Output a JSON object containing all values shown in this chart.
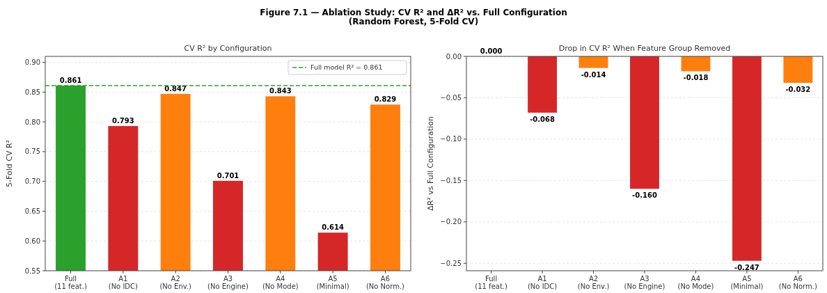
{
  "chart_data": [
    {
      "type": "bar",
      "title": "Figure 7.1 — Ablation Study: CV R² and ΔR² vs. Full Configuration\n(Random Forest, 5-Fold CV)",
      "subtitle": "CV R² by Configuration",
      "ylabel": "5-Fold CV R²",
      "categories": [
        "Full\n(11 feat.)",
        "A1\n(No IDC)",
        "A2\n(No Env.)",
        "A3\n(No Engine)",
        "A4\n(No Mode)",
        "A5\n(Minimal)",
        "A6\n(No Norm.)"
      ],
      "values": [
        0.861,
        0.793,
        0.847,
        0.701,
        0.843,
        0.614,
        0.829
      ],
      "colors": [
        "#2ca02c",
        "#d62728",
        "#ff7f0e",
        "#d62728",
        "#ff7f0e",
        "#d62728",
        "#ff7f0e"
      ],
      "value_labels": [
        "0.861",
        "0.793",
        "0.847",
        "0.701",
        "0.843",
        "0.614",
        "0.829"
      ],
      "ylim": [
        0.55,
        0.91
      ],
      "yticks": [
        {
          "value": 0.55,
          "label": "0.55"
        },
        {
          "value": 0.6,
          "label": "0.60"
        },
        {
          "value": 0.65,
          "label": "0.65"
        },
        {
          "value": 0.7,
          "label": "0.70"
        },
        {
          "value": 0.75,
          "label": "0.75"
        },
        {
          "value": 0.8,
          "label": "0.80"
        },
        {
          "value": 0.85,
          "label": "0.85"
        },
        {
          "value": 0.9,
          "label": "0.90"
        }
      ],
      "ref_lines": [
        {
          "axis": "y",
          "value": 0.861,
          "label": "Full model R² = 0.861",
          "color": "#2ca02c",
          "line_style": "dashed"
        }
      ],
      "grid": "y",
      "legend": "top right"
    },
    {
      "type": "bar",
      "subtitle": "Drop in CV R² When Feature Group Removed",
      "ylabel": "ΔR² vs Full Configuration",
      "categories": [
        "Full\n(11 feat.)",
        "A1\n(No IDC)",
        "A2\n(No Env.)",
        "A3\n(No Engine)",
        "A4\n(No Mode)",
        "A5\n(Minimal)",
        "A6\n(No Norm.)"
      ],
      "values": [
        0,
        -0.068,
        -0.014,
        -0.16,
        -0.018,
        -0.247,
        -0.032
      ],
      "colors": [
        "#2ca02c",
        "#d62728",
        "#ff7f0e",
        "#d62728",
        "#ff7f0e",
        "#d62728",
        "#ff7f0e"
      ],
      "value_labels": [
        "0.000",
        "-0.068",
        "-0.014",
        "-0.160",
        "-0.018",
        "-0.247",
        "-0.032"
      ],
      "ylim": [
        -0.259,
        0
      ],
      "yticks": [
        {
          "value": -0.25,
          "label": "−0.25"
        },
        {
          "value": -0.2,
          "label": "−0.20"
        },
        {
          "value": -0.15,
          "label": "−0.15"
        },
        {
          "value": -0.1,
          "label": "−0.10"
        },
        {
          "value": -0.05,
          "label": "−0.05"
        },
        {
          "value": 0,
          "label": "0.00"
        }
      ],
      "grid": "y"
    }
  ]
}
